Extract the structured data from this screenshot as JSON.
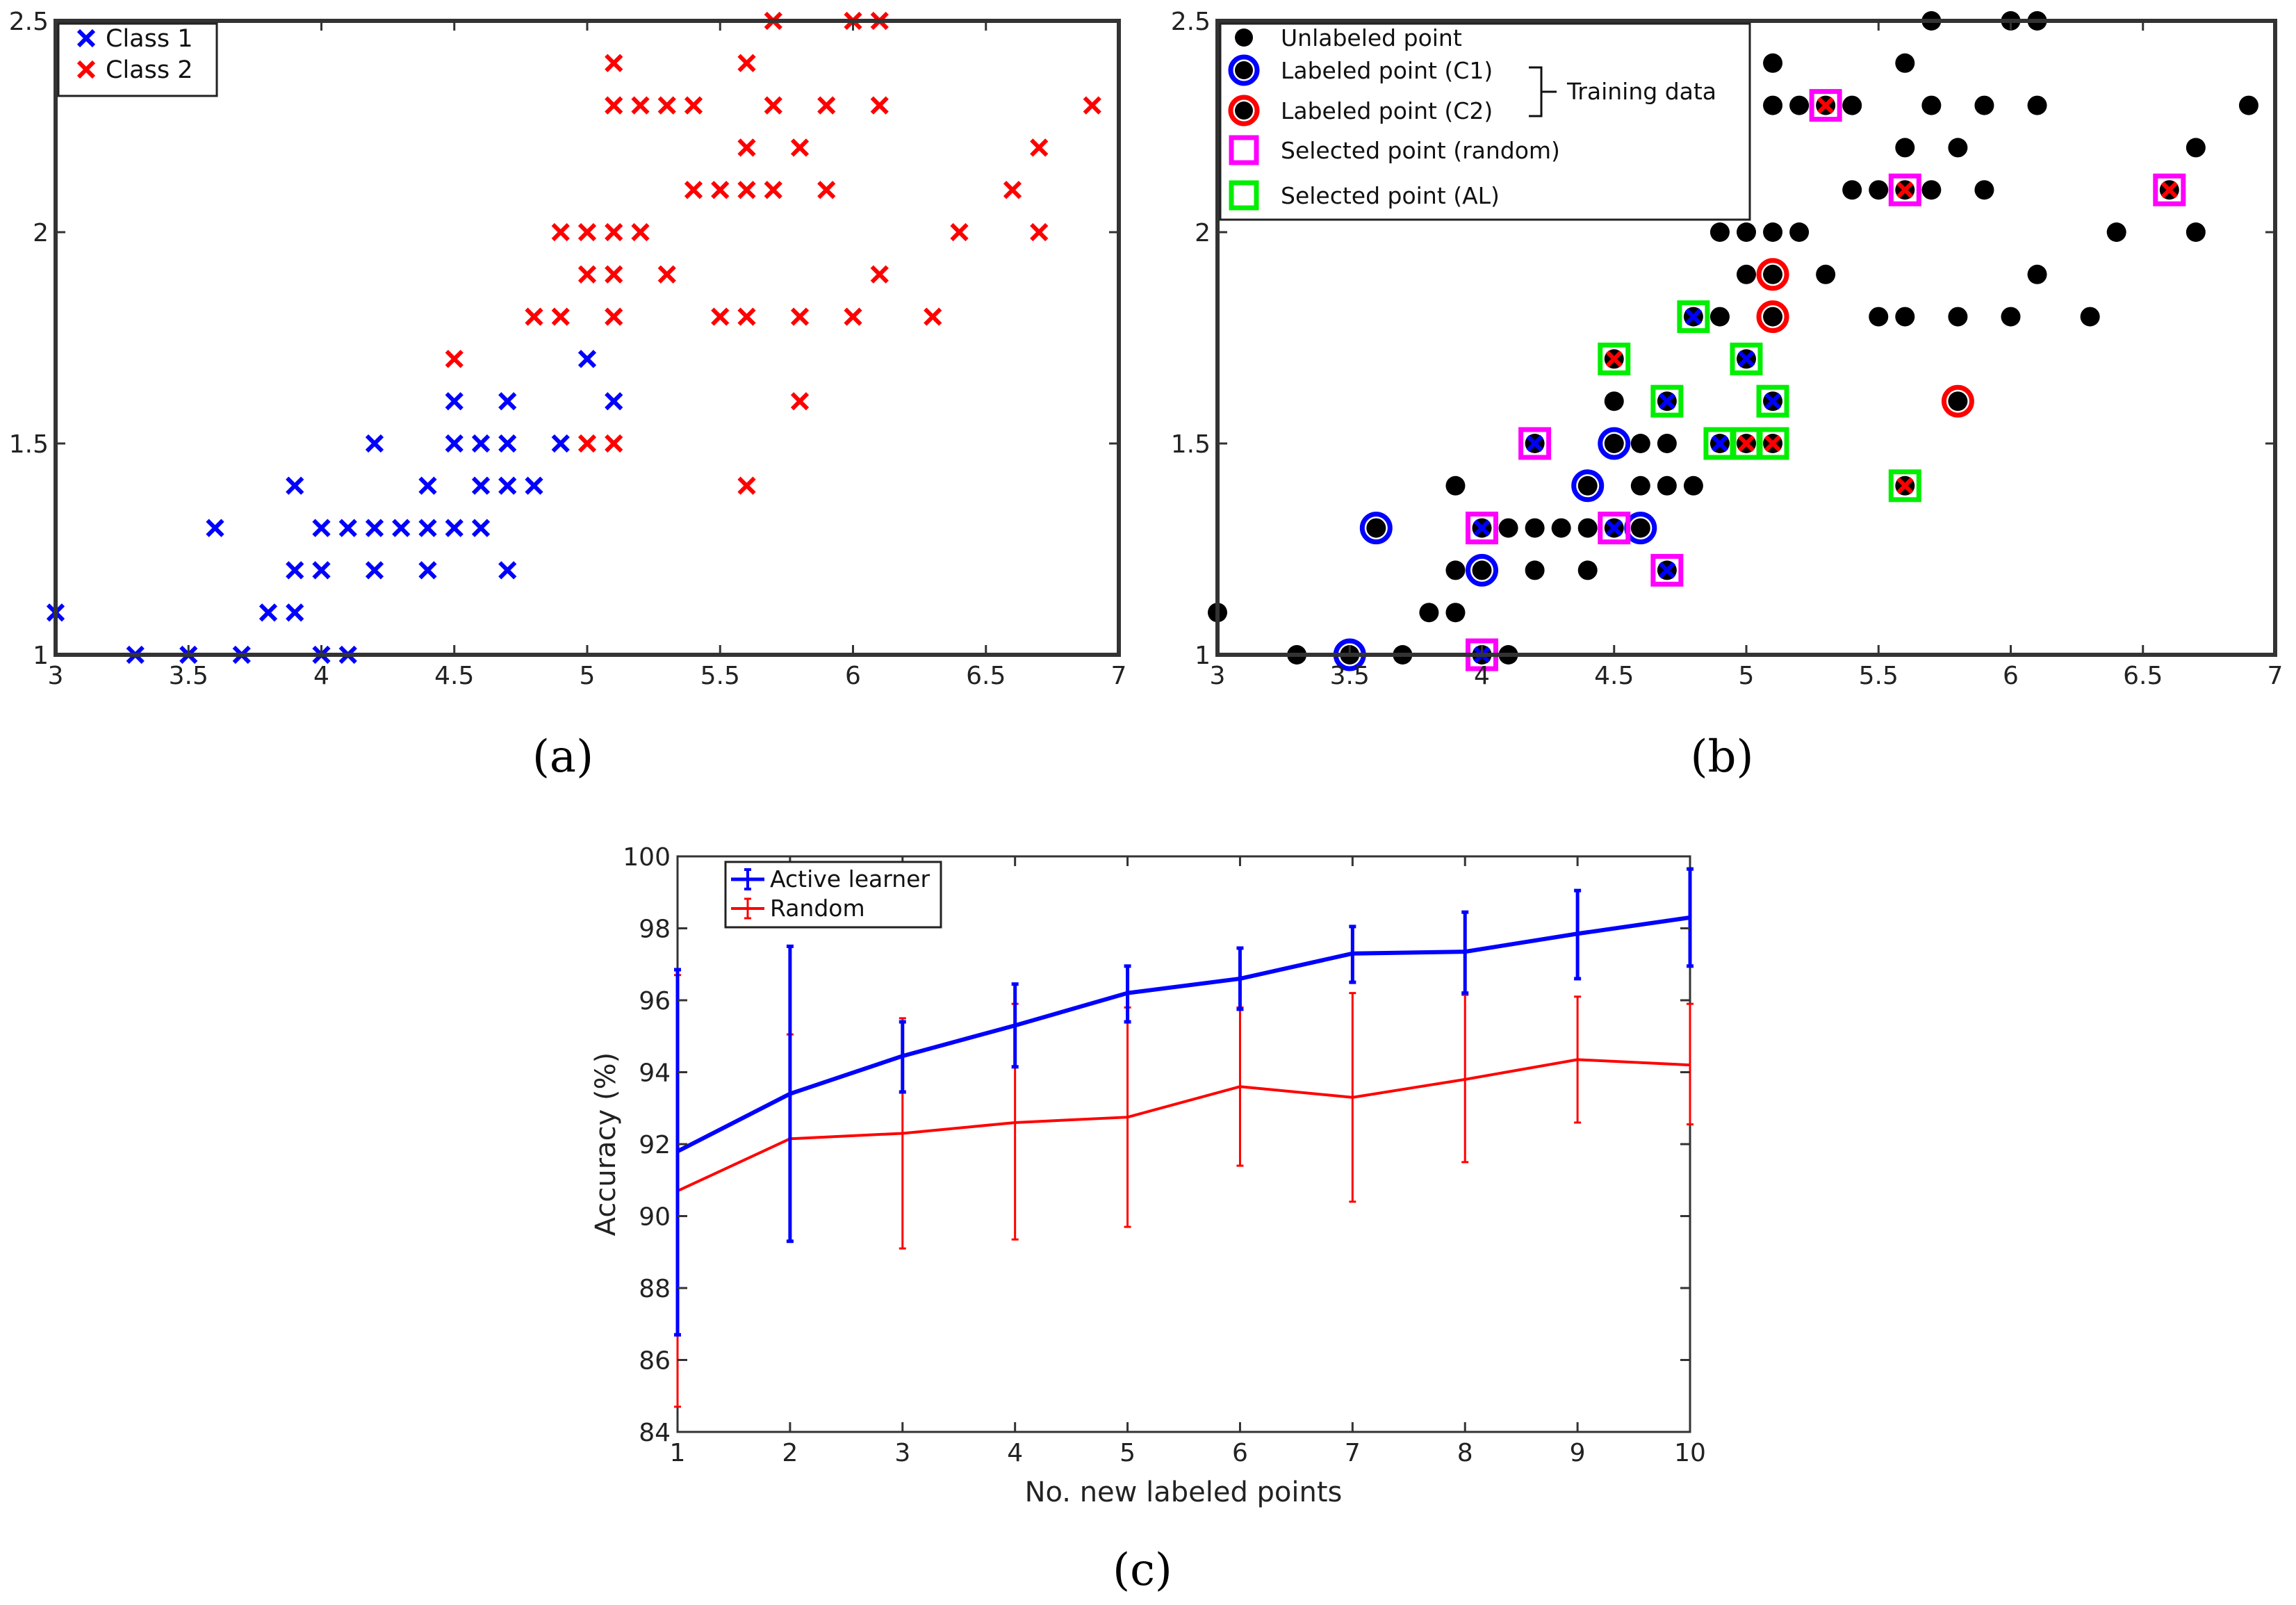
{
  "chart_data": [
    {
      "panel_label": "(a)",
      "type": "scatter",
      "xlim": [
        3,
        7
      ],
      "ylim": [
        1,
        2.5
      ],
      "xticks": [
        "3",
        "3.5",
        "4",
        "4.5",
        "5",
        "5.5",
        "6",
        "6.5",
        "7"
      ],
      "yticks": [
        "1",
        "1.5",
        "2",
        "2.5"
      ],
      "grid": false,
      "legend_position": "top-left",
      "legend": [
        "Class 1",
        "Class 2"
      ],
      "colors": {
        "class1": "#0000ff",
        "class2": "#ff0000"
      },
      "series": [
        {
          "name": "Class 1",
          "marker": "x",
          "points": [
            [
              3.0,
              1.1
            ],
            [
              3.3,
              1.0
            ],
            [
              3.5,
              1.0
            ],
            [
              3.6,
              1.3
            ],
            [
              3.7,
              1.0
            ],
            [
              3.8,
              1.1
            ],
            [
              3.9,
              1.4
            ],
            [
              3.9,
              1.2
            ],
            [
              3.9,
              1.1
            ],
            [
              4.0,
              1.3
            ],
            [
              4.0,
              1.2
            ],
            [
              4.0,
              1.0
            ],
            [
              4.1,
              1.3
            ],
            [
              4.1,
              1.0
            ],
            [
              4.2,
              1.5
            ],
            [
              4.2,
              1.3
            ],
            [
              4.2,
              1.2
            ],
            [
              4.3,
              1.3
            ],
            [
              4.4,
              1.4
            ],
            [
              4.4,
              1.3
            ],
            [
              4.4,
              1.2
            ],
            [
              4.5,
              1.6
            ],
            [
              4.5,
              1.5
            ],
            [
              4.5,
              1.3
            ],
            [
              4.6,
              1.5
            ],
            [
              4.6,
              1.4
            ],
            [
              4.6,
              1.3
            ],
            [
              4.7,
              1.6
            ],
            [
              4.7,
              1.5
            ],
            [
              4.7,
              1.4
            ],
            [
              4.7,
              1.2
            ],
            [
              4.8,
              1.4
            ],
            [
              4.9,
              1.5
            ],
            [
              5.0,
              1.7
            ],
            [
              5.1,
              1.6
            ]
          ]
        },
        {
          "name": "Class 2",
          "marker": "x",
          "points": [
            [
              4.5,
              1.7
            ],
            [
              4.8,
              1.8
            ],
            [
              4.9,
              2.0
            ],
            [
              4.9,
              1.8
            ],
            [
              5.0,
              2.0
            ],
            [
              5.0,
              1.9
            ],
            [
              5.0,
              1.5
            ],
            [
              5.1,
              2.4
            ],
            [
              5.1,
              2.3
            ],
            [
              5.1,
              2.0
            ],
            [
              5.1,
              1.9
            ],
            [
              5.1,
              1.8
            ],
            [
              5.1,
              1.5
            ],
            [
              5.2,
              2.3
            ],
            [
              5.2,
              2.0
            ],
            [
              5.3,
              2.3
            ],
            [
              5.3,
              1.9
            ],
            [
              5.4,
              2.3
            ],
            [
              5.4,
              2.1
            ],
            [
              5.5,
              2.1
            ],
            [
              5.5,
              1.8
            ],
            [
              5.6,
              2.4
            ],
            [
              5.6,
              2.2
            ],
            [
              5.6,
              2.1
            ],
            [
              5.6,
              1.8
            ],
            [
              5.6,
              1.4
            ],
            [
              5.7,
              2.5
            ],
            [
              5.7,
              2.3
            ],
            [
              5.7,
              2.1
            ],
            [
              5.8,
              2.2
            ],
            [
              5.8,
              1.8
            ],
            [
              5.8,
              1.6
            ],
            [
              5.9,
              2.3
            ],
            [
              5.9,
              2.1
            ],
            [
              6.0,
              2.5
            ],
            [
              6.0,
              1.8
            ],
            [
              6.1,
              2.5
            ],
            [
              6.1,
              2.3
            ],
            [
              6.1,
              1.9
            ],
            [
              6.3,
              1.8
            ],
            [
              6.4,
              2.0
            ],
            [
              6.6,
              2.1
            ],
            [
              6.7,
              2.2
            ],
            [
              6.7,
              2.0
            ],
            [
              6.9,
              2.3
            ]
          ]
        }
      ]
    },
    {
      "panel_label": "(b)",
      "type": "scatter",
      "xlim": [
        3,
        7
      ],
      "ylim": [
        1,
        2.5
      ],
      "xticks": [
        "3",
        "3.5",
        "4",
        "4.5",
        "5",
        "5.5",
        "6",
        "6.5",
        "7"
      ],
      "yticks": [
        "1",
        "1.5",
        "2",
        "2.5"
      ],
      "grid": false,
      "legend_position": "top-left",
      "legend": [
        "Unlabeled point",
        "Labeled point (C1)",
        "Labeled point (C2)",
        "Selected point (random)",
        "Selected point (AL)"
      ],
      "legend_bracket_label": "Training data",
      "colors": {
        "unlabeled": "#000000",
        "c1": "#0000ff",
        "c2": "#ff0000",
        "random": "#ff00ff",
        "al": "#00ee00"
      },
      "unlabeled_points": [
        [
          3.0,
          1.1
        ],
        [
          3.3,
          1.0
        ],
        [
          3.5,
          1.0
        ],
        [
          3.6,
          1.3
        ],
        [
          3.7,
          1.0
        ],
        [
          3.8,
          1.1
        ],
        [
          3.9,
          1.4
        ],
        [
          3.9,
          1.2
        ],
        [
          3.9,
          1.1
        ],
        [
          4.0,
          1.3
        ],
        [
          4.0,
          1.2
        ],
        [
          4.0,
          1.0
        ],
        [
          4.1,
          1.3
        ],
        [
          4.1,
          1.0
        ],
        [
          4.2,
          1.5
        ],
        [
          4.2,
          1.3
        ],
        [
          4.2,
          1.2
        ],
        [
          4.3,
          1.3
        ],
        [
          4.4,
          1.4
        ],
        [
          4.4,
          1.3
        ],
        [
          4.4,
          1.2
        ],
        [
          4.5,
          1.6
        ],
        [
          4.5,
          1.5
        ],
        [
          4.5,
          1.3
        ],
        [
          4.6,
          1.5
        ],
        [
          4.6,
          1.4
        ],
        [
          4.6,
          1.3
        ],
        [
          4.7,
          1.6
        ],
        [
          4.7,
          1.5
        ],
        [
          4.7,
          1.4
        ],
        [
          4.7,
          1.2
        ],
        [
          4.8,
          1.4
        ],
        [
          4.8,
          1.8
        ],
        [
          4.9,
          1.5
        ],
        [
          5.0,
          1.7
        ],
        [
          5.1,
          1.6
        ],
        [
          4.5,
          1.7
        ],
        [
          4.9,
          2.0
        ],
        [
          4.9,
          1.8
        ],
        [
          5.0,
          2.0
        ],
        [
          5.0,
          1.9
        ],
        [
          5.0,
          1.5
        ],
        [
          5.1,
          2.4
        ],
        [
          5.1,
          2.3
        ],
        [
          5.1,
          2.0
        ],
        [
          5.1,
          1.9
        ],
        [
          5.1,
          1.8
        ],
        [
          5.1,
          1.5
        ],
        [
          5.2,
          2.3
        ],
        [
          5.2,
          2.0
        ],
        [
          5.3,
          2.3
        ],
        [
          5.3,
          1.9
        ],
        [
          5.4,
          2.3
        ],
        [
          5.4,
          2.1
        ],
        [
          5.5,
          2.1
        ],
        [
          5.5,
          1.8
        ],
        [
          5.6,
          2.4
        ],
        [
          5.6,
          2.2
        ],
        [
          5.6,
          2.1
        ],
        [
          5.6,
          1.8
        ],
        [
          5.6,
          1.4
        ],
        [
          5.7,
          2.5
        ],
        [
          5.7,
          2.3
        ],
        [
          5.7,
          2.1
        ],
        [
          5.8,
          2.2
        ],
        [
          5.8,
          1.8
        ],
        [
          5.8,
          1.6
        ],
        [
          5.9,
          2.3
        ],
        [
          5.9,
          2.1
        ],
        [
          6.0,
          2.5
        ],
        [
          6.0,
          1.8
        ],
        [
          6.1,
          2.5
        ],
        [
          6.1,
          2.3
        ],
        [
          6.1,
          1.9
        ],
        [
          6.3,
          1.8
        ],
        [
          6.4,
          2.0
        ],
        [
          6.6,
          2.1
        ],
        [
          6.7,
          2.2
        ],
        [
          6.7,
          2.0
        ],
        [
          6.9,
          2.3
        ]
      ],
      "labeled_c1": [
        [
          3.5,
          1.0
        ],
        [
          3.6,
          1.3
        ],
        [
          4.0,
          1.2
        ],
        [
          4.4,
          1.4
        ],
        [
          4.5,
          1.5
        ],
        [
          4.6,
          1.3
        ]
      ],
      "labeled_c2": [
        [
          5.1,
          1.9
        ],
        [
          5.1,
          1.8
        ],
        [
          5.8,
          1.6
        ]
      ],
      "selected_random": [
        {
          "x": 4.0,
          "y": 1.3,
          "cls": 1
        },
        {
          "x": 4.0,
          "y": 1.0,
          "cls": 1
        },
        {
          "x": 4.2,
          "y": 1.5,
          "cls": 1
        },
        {
          "x": 4.5,
          "y": 1.3,
          "cls": 1
        },
        {
          "x": 4.7,
          "y": 1.2,
          "cls": 1
        },
        {
          "x": 5.3,
          "y": 2.3,
          "cls": 2
        },
        {
          "x": 5.6,
          "y": 2.1,
          "cls": 2
        },
        {
          "x": 6.6,
          "y": 2.1,
          "cls": 2
        }
      ],
      "selected_al": [
        {
          "x": 4.5,
          "y": 1.7,
          "cls": 2
        },
        {
          "x": 4.7,
          "y": 1.6,
          "cls": 1
        },
        {
          "x": 4.8,
          "y": 1.8,
          "cls": 1
        },
        {
          "x": 4.9,
          "y": 1.5,
          "cls": 1
        },
        {
          "x": 5.0,
          "y": 1.7,
          "cls": 1
        },
        {
          "x": 5.0,
          "y": 1.5,
          "cls": 2
        },
        {
          "x": 5.1,
          "y": 1.6,
          "cls": 1
        },
        {
          "x": 5.1,
          "y": 1.5,
          "cls": 2
        },
        {
          "x": 5.6,
          "y": 1.4,
          "cls": 2
        }
      ]
    },
    {
      "panel_label": "(c)",
      "type": "line",
      "xlabel": "No. new labeled points",
      "ylabel": "Accuracy (%)",
      "xlim": [
        1,
        10
      ],
      "ylim": [
        84,
        100
      ],
      "xticks": [
        "1",
        "2",
        "3",
        "4",
        "5",
        "6",
        "7",
        "8",
        "9",
        "10"
      ],
      "yticks": [
        "84",
        "86",
        "88",
        "90",
        "92",
        "94",
        "96",
        "98",
        "100"
      ],
      "grid": false,
      "legend_position": "top-left",
      "x": [
        1,
        2,
        3,
        4,
        5,
        6,
        7,
        8,
        9,
        10
      ],
      "series": [
        {
          "name": "Active learner",
          "color": "#0000ff",
          "values": [
            91.8,
            93.4,
            94.45,
            95.3,
            96.2,
            96.6,
            97.3,
            97.35,
            97.85,
            98.3
          ],
          "err_low": [
            86.7,
            89.3,
            93.45,
            94.15,
            95.4,
            95.75,
            96.5,
            96.2,
            96.6,
            96.95
          ],
          "err_high": [
            96.85,
            97.5,
            95.4,
            96.45,
            96.95,
            97.45,
            98.05,
            98.45,
            99.05,
            99.65
          ]
        },
        {
          "name": "Random",
          "color": "#ff0000",
          "values": [
            90.7,
            92.15,
            92.3,
            92.6,
            92.75,
            93.6,
            93.3,
            93.8,
            94.35,
            94.2
          ],
          "err_low": [
            84.7,
            89.3,
            89.1,
            89.35,
            89.7,
            91.4,
            90.4,
            91.5,
            92.6,
            92.55
          ],
          "err_high": [
            96.7,
            95.05,
            95.5,
            95.9,
            95.8,
            95.8,
            96.2,
            96.15,
            96.1,
            95.9
          ]
        }
      ]
    }
  ]
}
